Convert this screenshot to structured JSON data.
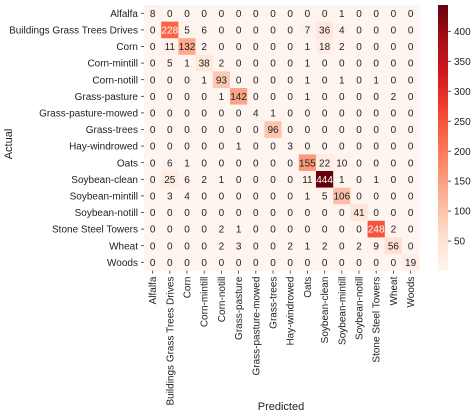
{
  "chart_data": {
    "type": "heatmap",
    "xlabel": "Predicted",
    "ylabel": "Actual",
    "row_labels": [
      "Alfalfa",
      "Buildings Grass Trees Drives",
      "Corn",
      "Corn-mintill",
      "Corn-notill",
      "Grass-pasture",
      "Grass-pasture-mowed",
      "Grass-trees",
      "Hay-windrowed",
      "Oats",
      "Soybean-clean",
      "Soybean-mintill",
      "Soybean-notill",
      "Stone Steel Towers",
      "Wheat",
      "Woods"
    ],
    "col_labels": [
      "Alfalfa",
      "Buildings Grass Trees Drives",
      "Corn",
      "Corn-mintill",
      "Corn-notill",
      "Grass-pasture",
      "Grass-pasture-mowed",
      "Grass-trees",
      "Hay-windrowed",
      "Oats",
      "Soybean-clean",
      "Soybean-mintill",
      "Soybean-notill",
      "Stone Steel Towers",
      "Wheat",
      "Woods"
    ],
    "values": [
      [
        8,
        0,
        0,
        0,
        0,
        0,
        0,
        0,
        0,
        0,
        0,
        1,
        0,
        0,
        0,
        0
      ],
      [
        0,
        228,
        5,
        6,
        0,
        0,
        0,
        0,
        0,
        7,
        36,
        4,
        0,
        0,
        0,
        0
      ],
      [
        0,
        11,
        132,
        2,
        0,
        0,
        0,
        0,
        0,
        1,
        18,
        2,
        0,
        0,
        0,
        0
      ],
      [
        0,
        5,
        1,
        38,
        2,
        0,
        0,
        0,
        0,
        1,
        0,
        0,
        0,
        0,
        0,
        0
      ],
      [
        0,
        0,
        0,
        1,
        93,
        0,
        0,
        0,
        0,
        1,
        0,
        1,
        0,
        1,
        0,
        0
      ],
      [
        0,
        0,
        0,
        0,
        1,
        142,
        0,
        0,
        0,
        1,
        0,
        0,
        0,
        0,
        2,
        0
      ],
      [
        0,
        0,
        0,
        0,
        0,
        0,
        4,
        1,
        0,
        0,
        0,
        0,
        0,
        0,
        0,
        0
      ],
      [
        0,
        0,
        0,
        0,
        0,
        0,
        0,
        96,
        0,
        0,
        0,
        0,
        0,
        0,
        0,
        0
      ],
      [
        0,
        0,
        0,
        0,
        0,
        1,
        0,
        0,
        3,
        0,
        0,
        0,
        0,
        0,
        0,
        0
      ],
      [
        0,
        6,
        1,
        0,
        0,
        0,
        0,
        0,
        0,
        155,
        22,
        10,
        0,
        0,
        0,
        0
      ],
      [
        0,
        25,
        6,
        2,
        1,
        0,
        0,
        0,
        0,
        11,
        444,
        1,
        0,
        1,
        0,
        0
      ],
      [
        0,
        3,
        4,
        0,
        0,
        0,
        0,
        0,
        0,
        1,
        5,
        106,
        0,
        0,
        0,
        0
      ],
      [
        0,
        0,
        0,
        0,
        0,
        0,
        0,
        0,
        0,
        0,
        0,
        0,
        41,
        0,
        0,
        0
      ],
      [
        0,
        0,
        0,
        0,
        2,
        1,
        0,
        0,
        0,
        0,
        0,
        0,
        0,
        248,
        2,
        0
      ],
      [
        0,
        0,
        0,
        0,
        2,
        3,
        0,
        0,
        2,
        1,
        2,
        0,
        2,
        9,
        56,
        0
      ],
      [
        0,
        0,
        0,
        0,
        0,
        0,
        0,
        0,
        0,
        0,
        0,
        0,
        0,
        0,
        0,
        19
      ]
    ],
    "colorbar": {
      "min": 0,
      "max": 444,
      "ticks": [
        50,
        100,
        150,
        200,
        250,
        300,
        350,
        400
      ],
      "colormap": "Reds"
    }
  }
}
